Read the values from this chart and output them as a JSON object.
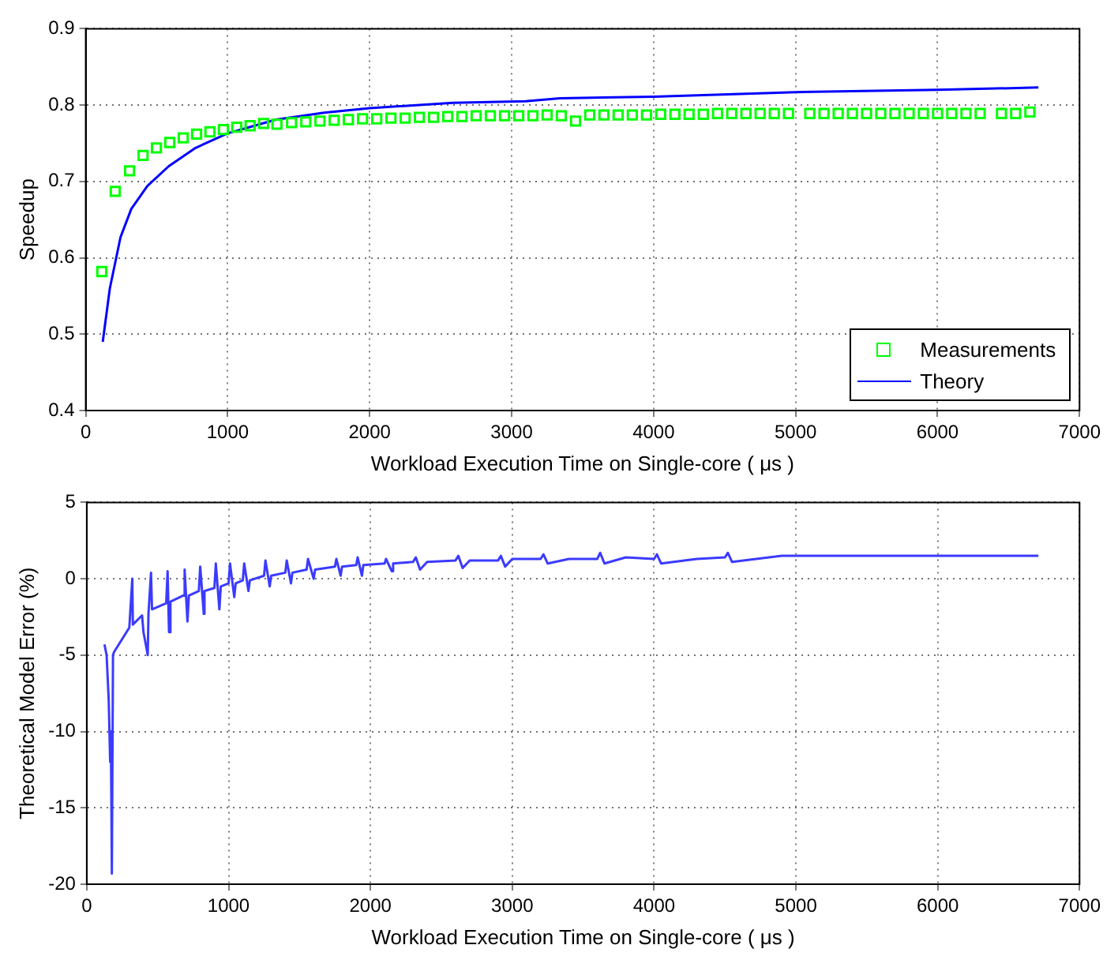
{
  "chart_data": [
    {
      "type": "line",
      "xlabel": "Workload Execution Time on Single-core ( μs )",
      "ylabel": "Speedup",
      "xlim": [
        0,
        7000
      ],
      "xticks": [
        0,
        1000,
        2000,
        3000,
        4000,
        5000,
        6000,
        7000
      ],
      "ylim": [
        0.4,
        0.9
      ],
      "yticks": [
        0.4,
        0.5,
        0.6,
        0.7,
        0.8,
        0.9
      ],
      "grid": true,
      "legend": "bottom right",
      "series": [
        {
          "name": "Measurements",
          "type": "scatter",
          "marker": "square",
          "color": "#00ff00",
          "x": [
            113,
            208,
            309,
            404,
            498,
            592,
            687,
            781,
            875,
            970,
            1064,
            1158,
            1253,
            1347,
            1450,
            1550,
            1650,
            1750,
            1850,
            1950,
            2050,
            2150,
            2250,
            2350,
            2450,
            2550,
            2650,
            2750,
            2850,
            2950,
            3050,
            3150,
            3250,
            3350,
            3450,
            3550,
            3650,
            3750,
            3850,
            3950,
            4050,
            4150,
            4250,
            4350,
            4450,
            4550,
            4650,
            4750,
            4850,
            4950,
            5100,
            5200,
            5300,
            5400,
            5500,
            5600,
            5700,
            5800,
            5900,
            6000,
            6100,
            6200,
            6300,
            6450,
            6550,
            6650
          ],
          "values": [
            0.582,
            0.687,
            0.714,
            0.734,
            0.744,
            0.751,
            0.757,
            0.762,
            0.765,
            0.768,
            0.771,
            0.773,
            0.776,
            0.775,
            0.777,
            0.778,
            0.779,
            0.78,
            0.781,
            0.782,
            0.782,
            0.783,
            0.783,
            0.784,
            0.784,
            0.785,
            0.785,
            0.786,
            0.786,
            0.786,
            0.786,
            0.786,
            0.787,
            0.786,
            0.779,
            0.787,
            0.787,
            0.787,
            0.787,
            0.787,
            0.788,
            0.788,
            0.788,
            0.788,
            0.789,
            0.789,
            0.789,
            0.789,
            0.789,
            0.789,
            0.789,
            0.789,
            0.789,
            0.789,
            0.789,
            0.789,
            0.789,
            0.789,
            0.789,
            0.789,
            0.789,
            0.789,
            0.789,
            0.789,
            0.789,
            0.791
          ]
        },
        {
          "name": "Theory",
          "marker": "none",
          "color": "#0000ff",
          "x": [
            120,
            170,
            245,
            321,
            434,
            585,
            774,
            1000,
            1340,
            1679,
            2000,
            2585,
            3097,
            3340,
            4000,
            5000,
            6000,
            6710
          ],
          "values": [
            0.49,
            0.56,
            0.627,
            0.664,
            0.694,
            0.72,
            0.744,
            0.763,
            0.781,
            0.79,
            0.796,
            0.803,
            0.805,
            0.809,
            0.811,
            0.817,
            0.82,
            0.823
          ]
        }
      ]
    },
    {
      "type": "line",
      "xlabel": "Workload Execution Time on Single-core ( μs )",
      "ylabel": "Theoretical Model Error (%)",
      "xlim": [
        0,
        7000
      ],
      "xticks": [
        0,
        1000,
        2000,
        3000,
        4000,
        5000,
        6000,
        7000
      ],
      "ylim": [
        -20,
        5
      ],
      "yticks": [
        -20,
        -15,
        -10,
        -5,
        0,
        5
      ],
      "grid": true,
      "series": [
        {
          "marker": "none",
          "color": "#3b3bff",
          "x": [
            125,
            140,
            155,
            165,
            170,
            177,
            185,
            192,
            300,
            321,
            325,
            390,
            400,
            430,
            435,
            453,
            460,
            560,
            570,
            580,
            590,
            680,
            690,
            710,
            720,
            790,
            800,
            825,
            830,
            900,
            910,
            935,
            945,
            1000,
            1010,
            1040,
            1050,
            1100,
            1110,
            1140,
            1150,
            1250,
            1260,
            1290,
            1300,
            1400,
            1410,
            1440,
            1450,
            1550,
            1560,
            1600,
            1610,
            1750,
            1760,
            1790,
            1800,
            1900,
            1910,
            1940,
            1950,
            2100,
            2110,
            2150,
            2160,
            2300,
            2320,
            2350,
            2400,
            2600,
            2620,
            2650,
            2700,
            2900,
            2920,
            2950,
            3000,
            3200,
            3220,
            3250,
            3400,
            3600,
            3620,
            3650,
            3800,
            4000,
            4020,
            4050,
            4300,
            4500,
            4520,
            4550,
            4900,
            5000,
            5500,
            6000,
            6500,
            6710
          ],
          "values": [
            -4.3,
            -5,
            -8,
            -12,
            -10,
            -19.3,
            -5,
            -4.8,
            -3.2,
            0,
            -3,
            -2.4,
            -3.5,
            -5,
            -2.3,
            0.4,
            -2,
            -1.6,
            0.5,
            -3.5,
            -1.5,
            -1.1,
            0.6,
            -2.8,
            -1.1,
            -0.8,
            0.8,
            -2.3,
            -0.8,
            -0.6,
            1,
            -2,
            -0.5,
            -0.3,
            1,
            -1.2,
            -0.3,
            -0.1,
            1,
            -0.8,
            -0.1,
            0.2,
            1.2,
            -0.5,
            0.2,
            0.4,
            1.2,
            -0.3,
            0.4,
            0.6,
            1.3,
            0,
            0.6,
            0.8,
            1.3,
            0.2,
            0.8,
            0.9,
            1.4,
            0.2,
            0.9,
            1,
            1.3,
            0.5,
            1,
            1.1,
            1.4,
            0.6,
            1.1,
            1.2,
            1.5,
            0.7,
            1.2,
            1.2,
            1.5,
            0.8,
            1.3,
            1.3,
            1.6,
            1,
            1.3,
            1.3,
            1.7,
            1,
            1.4,
            1.3,
            1.6,
            1,
            1.3,
            1.4,
            1.7,
            1.1,
            1.5,
            1.5,
            1.5,
            1.5,
            1.5,
            1.5
          ]
        }
      ]
    }
  ]
}
